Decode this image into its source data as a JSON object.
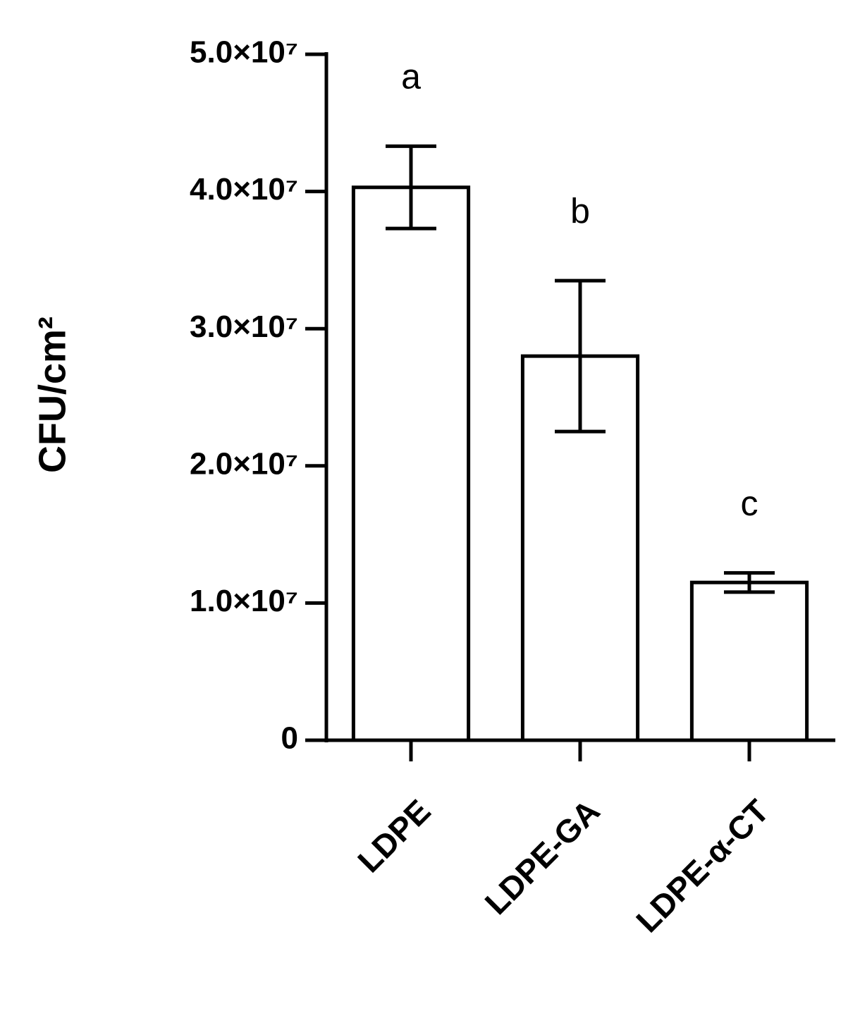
{
  "chart_data": {
    "type": "bar",
    "y_label": "CFU/cm²",
    "categories": [
      "LDPE",
      "LDPE-GA",
      "LDPE-α-CT"
    ],
    "values": [
      40300000,
      28000000,
      11500000
    ],
    "errors": [
      3000000,
      5500000,
      700000
    ],
    "significance_letters": [
      "a",
      "b",
      "c"
    ],
    "color": "#ffffff",
    "ylim": [
      0,
      50000000
    ],
    "yticks": [
      0,
      {
        "value": 10000000,
        "label": "1.0×10⁷"
      },
      {
        "value": 20000000,
        "label": "2.0×10⁷"
      },
      {
        "value": 30000000,
        "label": "3.0×10⁷"
      },
      {
        "value": 40000000,
        "label": "4.0×10⁷"
      },
      {
        "value": 50000000,
        "label": "5.0×10⁷"
      }
    ],
    "grid": false
  }
}
